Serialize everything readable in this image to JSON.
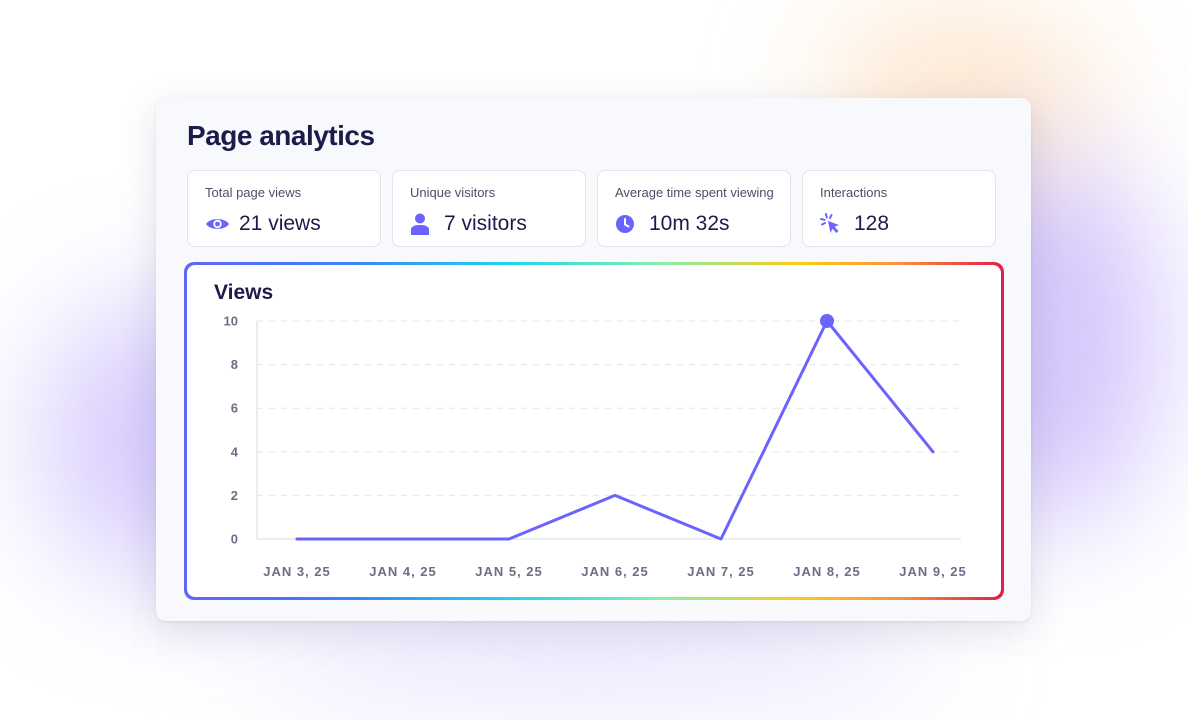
{
  "page": {
    "title": "Page analytics"
  },
  "stats": [
    {
      "label": "Total page views",
      "value": "21 views",
      "icon": "eye-icon"
    },
    {
      "label": "Unique visitors",
      "value": "7 visitors",
      "icon": "user-icon"
    },
    {
      "label": "Average time spent viewing",
      "value": "10m 32s",
      "icon": "clock-icon"
    },
    {
      "label": "Interactions",
      "value": "128",
      "icon": "cursor-click-icon"
    }
  ],
  "colors": {
    "accent": "#6c63ff",
    "title": "#1e1b4b",
    "text_muted": "#4b5069"
  },
  "chart_data": {
    "type": "line",
    "title": "Views",
    "categories": [
      "JAN 3, 25",
      "JAN 4, 25",
      "JAN 5, 25",
      "JAN 6, 25",
      "JAN 7, 25",
      "JAN 8, 25",
      "JAN 9, 25"
    ],
    "values": [
      0,
      0,
      0,
      2,
      0,
      10,
      4
    ],
    "y_ticks": [
      "0",
      "2",
      "4",
      "6",
      "8",
      "10"
    ],
    "ylim": [
      0,
      10
    ],
    "grid": true,
    "highlighted_point": 5,
    "line_color": "#6c63ff"
  }
}
